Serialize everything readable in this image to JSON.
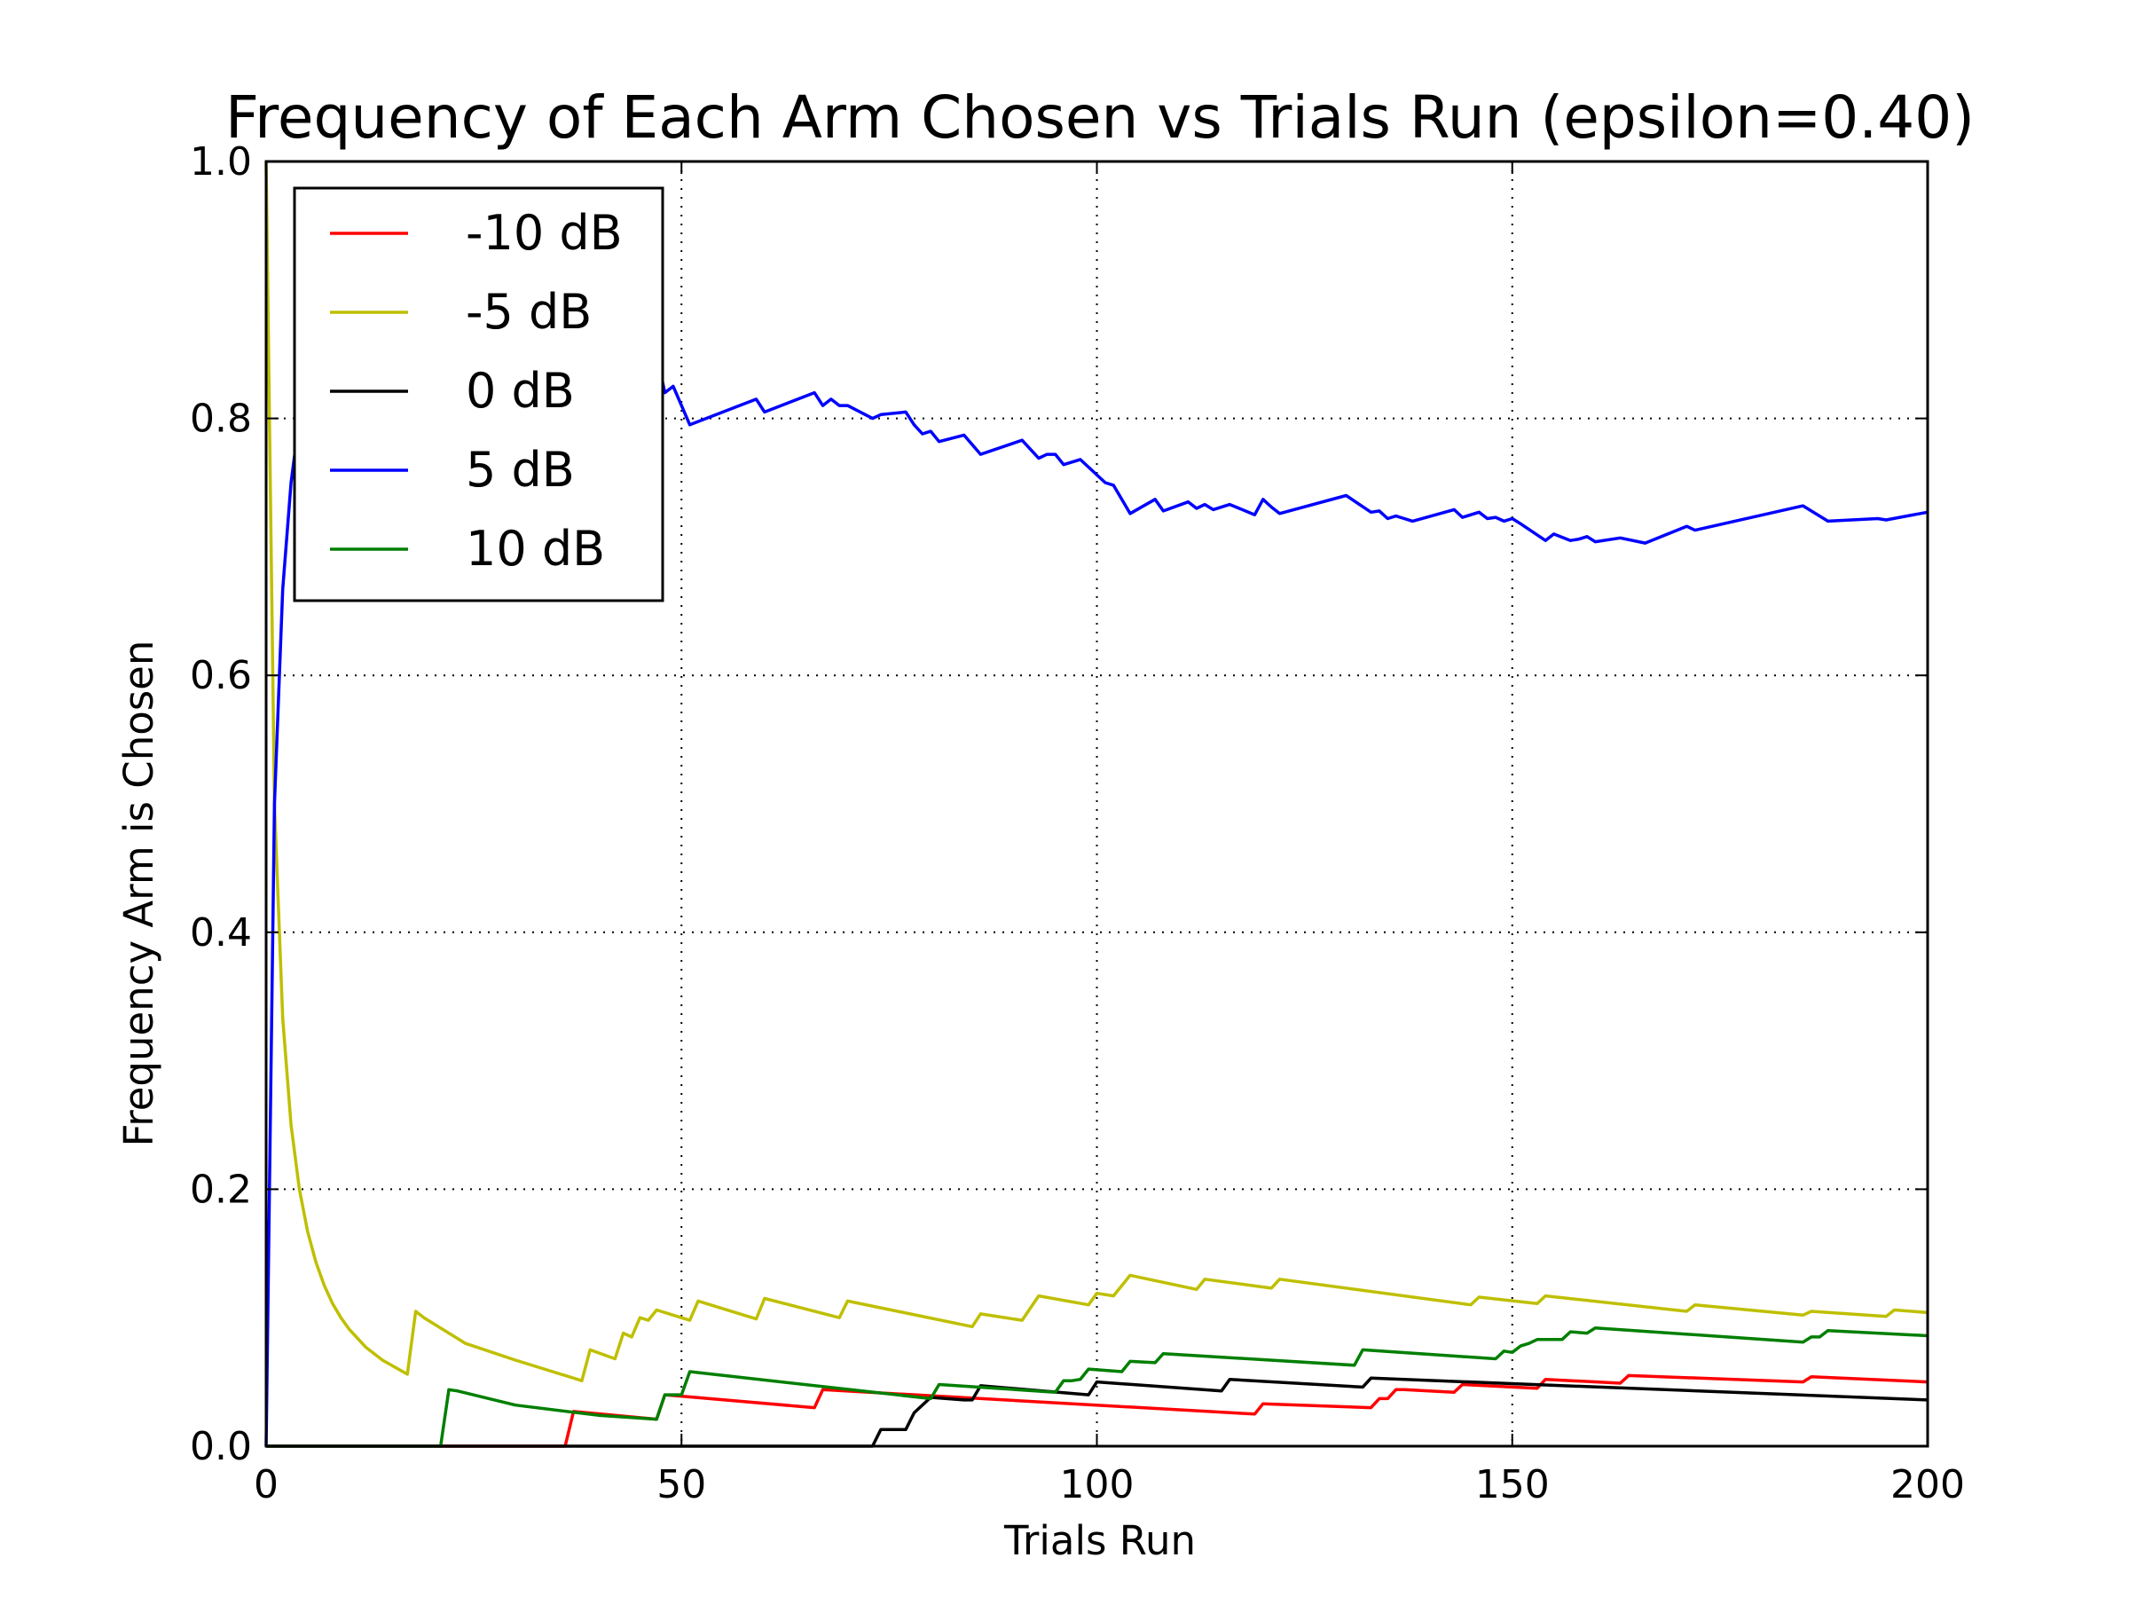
{
  "chart_data": {
    "type": "line",
    "title": "Frequency of Each Arm Chosen vs Trials Run (epsilon=0.40)",
    "xlabel": "Trials Run",
    "ylabel": "Frequency Arm is Chosen",
    "xlim": [
      0,
      200
    ],
    "ylim": [
      0,
      1.0
    ],
    "x_ticks": [
      0,
      50,
      100,
      150,
      200
    ],
    "x_tick_labels": [
      "0",
      "50",
      "100",
      "150",
      "200"
    ],
    "y_ticks": [
      0.0,
      0.2,
      0.4,
      0.6,
      0.8,
      1.0
    ],
    "y_tick_labels": [
      "0.0",
      "0.2",
      "0.4",
      "0.6",
      "0.8",
      "1.0"
    ],
    "grid": true,
    "legend_position": "top-left",
    "series": [
      {
        "name": "-10 dB",
        "color": "#ff0000",
        "x": [
          0,
          36,
          37,
          47,
          48,
          66,
          67,
          119,
          120,
          133,
          134,
          135,
          136,
          137,
          143,
          144,
          153,
          154,
          163,
          164,
          185,
          186,
          200
        ],
        "y": [
          0,
          0,
          0.027,
          0.021,
          0.04,
          0.03,
          0.044,
          0.025,
          0.033,
          0.03,
          0.037,
          0.037,
          0.044,
          0.044,
          0.042,
          0.048,
          0.045,
          0.052,
          0.049,
          0.055,
          0.05,
          0.054,
          0.05
        ]
      },
      {
        "name": "-5 dB",
        "color": "#bfbf00",
        "x": [
          0,
          1,
          2,
          3,
          4,
          5,
          6,
          7,
          8,
          9,
          10,
          12,
          14,
          17,
          18,
          19,
          24,
          30,
          38,
          39,
          42,
          43,
          44,
          45,
          46,
          47,
          49,
          51,
          52,
          59,
          60,
          69,
          70,
          85,
          86,
          91,
          93,
          99,
          100,
          102,
          104,
          112,
          113,
          121,
          122,
          145,
          146,
          153,
          154,
          171,
          172,
          185,
          186,
          195,
          196,
          200
        ],
        "y": [
          1.0,
          0.5,
          0.333,
          0.25,
          0.2,
          0.167,
          0.143,
          0.125,
          0.111,
          0.1,
          0.091,
          0.077,
          0.067,
          0.056,
          0.105,
          0.1,
          0.08,
          0.067,
          0.051,
          0.075,
          0.068,
          0.088,
          0.085,
          0.1,
          0.098,
          0.106,
          0.102,
          0.098,
          0.113,
          0.099,
          0.115,
          0.1,
          0.113,
          0.093,
          0.103,
          0.098,
          0.117,
          0.11,
          0.119,
          0.117,
          0.133,
          0.122,
          0.13,
          0.123,
          0.13,
          0.11,
          0.116,
          0.111,
          0.117,
          0.105,
          0.11,
          0.102,
          0.105,
          0.101,
          0.106,
          0.104
        ]
      },
      {
        "name": "0 dB",
        "color": "#000000",
        "x": [
          0,
          73,
          74,
          77,
          78,
          80,
          84,
          85,
          86,
          99,
          100,
          115,
          116,
          132,
          133,
          200
        ],
        "y": [
          0,
          0,
          0.013,
          0.013,
          0.026,
          0.038,
          0.036,
          0.036,
          0.047,
          0.04,
          0.05,
          0.043,
          0.052,
          0.046,
          0.053,
          0.036
        ]
      },
      {
        "name": "5 dB",
        "color": "#0000ff",
        "x": [
          0,
          1,
          2,
          3,
          4,
          5,
          7,
          10,
          15,
          20,
          25,
          30,
          35,
          40,
          45,
          47,
          48,
          49,
          51,
          59,
          60,
          66,
          67,
          68,
          69,
          70,
          73,
          74,
          77,
          78,
          79,
          80,
          81,
          84,
          86,
          91,
          93,
          94,
          95,
          96,
          98,
          101,
          102,
          104,
          107,
          108,
          111,
          112,
          113,
          114,
          116,
          119,
          120,
          121,
          122,
          130,
          133,
          134,
          135,
          136,
          137,
          138,
          143,
          144,
          146,
          147,
          148,
          149,
          150,
          151,
          154,
          155,
          157,
          158,
          159,
          160,
          163,
          166,
          171,
          172,
          185,
          188,
          194,
          195,
          200
        ],
        "y": [
          0,
          0.5,
          0.667,
          0.75,
          0.8,
          0.833,
          0.857,
          0.88,
          0.9,
          0.91,
          0.92,
          0.92,
          0.9,
          0.88,
          0.87,
          0.85,
          0.82,
          0.825,
          0.795,
          0.815,
          0.805,
          0.82,
          0.81,
          0.815,
          0.81,
          0.81,
          0.8,
          0.803,
          0.805,
          0.795,
          0.788,
          0.79,
          0.782,
          0.787,
          0.772,
          0.783,
          0.769,
          0.772,
          0.772,
          0.764,
          0.768,
          0.75,
          0.748,
          0.726,
          0.737,
          0.728,
          0.735,
          0.73,
          0.733,
          0.729,
          0.733,
          0.725,
          0.737,
          0.731,
          0.726,
          0.74,
          0.727,
          0.728,
          0.722,
          0.724,
          0.722,
          0.72,
          0.729,
          0.723,
          0.727,
          0.722,
          0.723,
          0.72,
          0.722,
          0.718,
          0.705,
          0.71,
          0.705,
          0.706,
          0.708,
          0.704,
          0.707,
          0.703,
          0.716,
          0.713,
          0.732,
          0.72,
          0.722,
          0.721,
          0.727
        ]
      },
      {
        "name": "10 dB",
        "color": "#007f00",
        "x": [
          0,
          21,
          22,
          23,
          30,
          40,
          47,
          48,
          49,
          50,
          51,
          80,
          81,
          95,
          96,
          97,
          98,
          99,
          103,
          104,
          107,
          108,
          131,
          132,
          148,
          149,
          150,
          151,
          152,
          153,
          156,
          157,
          159,
          160,
          185,
          186,
          187,
          188,
          200
        ],
        "y": [
          0,
          0,
          0.044,
          0.043,
          0.032,
          0.024,
          0.021,
          0.04,
          0.04,
          0.04,
          0.058,
          0.037,
          0.048,
          0.042,
          0.051,
          0.051,
          0.052,
          0.06,
          0.058,
          0.066,
          0.065,
          0.072,
          0.063,
          0.075,
          0.068,
          0.074,
          0.073,
          0.078,
          0.08,
          0.083,
          0.083,
          0.089,
          0.088,
          0.092,
          0.081,
          0.085,
          0.085,
          0.09,
          0.086
        ]
      }
    ]
  }
}
